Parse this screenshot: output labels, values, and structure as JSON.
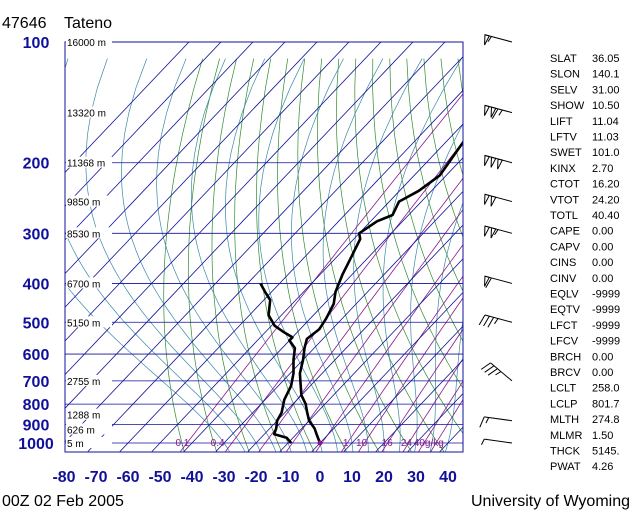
{
  "header": {
    "station_id": "47646",
    "station_name": "Tateno"
  },
  "footer": {
    "time": "00Z 02 Feb 2005",
    "source": "University of Wyoming"
  },
  "colors": {
    "grid": "#10109a",
    "dry_adiabat": "#2e8b2e",
    "moist_adiabat": "#3a8aa8",
    "mixing_ratio": "#8a1a8a",
    "profile": "#000000"
  },
  "chart_data": {
    "type": "line",
    "title": "47646 Tateno",
    "subtitle": "00Z 02 Feb 2005",
    "xlabel": "",
    "ylabel": "",
    "xlim": [
      -80,
      45
    ],
    "ylim": [
      1050,
      100
    ],
    "y_scale": "log",
    "grid": true,
    "x_ticks": [
      -80,
      -70,
      -60,
      -50,
      -40,
      -30,
      -20,
      -10,
      0,
      10,
      20,
      30,
      40
    ],
    "y_ticks": [
      100,
      200,
      300,
      400,
      500,
      600,
      700,
      800,
      900,
      1000
    ],
    "height_labels": [
      {
        "p": 100,
        "label": "16000 m"
      },
      {
        "p": 150,
        "label": "13320 m"
      },
      {
        "p": 200,
        "label": "11368 m"
      },
      {
        "p": 250,
        "label": "9850 m"
      },
      {
        "p": 300,
        "label": "8530 m"
      },
      {
        "p": 400,
        "label": "6700 m"
      },
      {
        "p": 500,
        "label": "5150 m"
      },
      {
        "p": 700,
        "label": "2755 m"
      },
      {
        "p": 850,
        "label": "1288 m"
      },
      {
        "p": 925,
        "label": "626 m"
      },
      {
        "p": 1000,
        "label": "5 m"
      }
    ],
    "mixing_ratio_labels": [
      {
        "w": "0.1",
        "t": -43
      },
      {
        "w": "0.4",
        "t": -32
      },
      {
        "w": "1",
        "t": 8
      },
      {
        "w": "10",
        "t": 13
      },
      {
        "w": "16",
        "t": 21
      },
      {
        "w": "24",
        "t": 27
      },
      {
        "w": "40g/kg",
        "t": 34
      }
    ],
    "series": [
      {
        "name": "Temperature",
        "points": [
          [
            0,
            1000
          ],
          [
            -3,
            960
          ],
          [
            -6,
            920
          ],
          [
            -10,
            880
          ],
          [
            -13,
            840
          ],
          [
            -16,
            800
          ],
          [
            -20,
            760
          ],
          [
            -23,
            720
          ],
          [
            -27,
            670
          ],
          [
            -30,
            620
          ],
          [
            -33,
            580
          ],
          [
            -35,
            550
          ],
          [
            -34,
            520
          ],
          [
            -35,
            490
          ],
          [
            -37,
            450
          ],
          [
            -40,
            420
          ],
          [
            -43,
            380
          ],
          [
            -45,
            350
          ],
          [
            -48,
            310
          ],
          [
            -50,
            300
          ],
          [
            -48,
            280
          ],
          [
            -45,
            270
          ],
          [
            -47,
            250
          ],
          [
            -44,
            235
          ],
          [
            -42,
            215
          ],
          [
            -43,
            200
          ],
          [
            -46,
            160
          ],
          [
            -46,
            140
          ],
          [
            -48,
            130
          ],
          [
            -50,
            115
          ],
          [
            -52,
            105
          ],
          [
            -53,
            100
          ]
        ]
      },
      {
        "name": "Dewpoint",
        "points": [
          [
            -9,
            1000
          ],
          [
            -12,
            970
          ],
          [
            -17,
            950
          ],
          [
            -18,
            920
          ],
          [
            -20,
            880
          ],
          [
            -21,
            840
          ],
          [
            -24,
            780
          ],
          [
            -26,
            720
          ],
          [
            -29,
            670
          ],
          [
            -33,
            620
          ],
          [
            -36,
            580
          ],
          [
            -40,
            555
          ],
          [
            -40,
            545
          ],
          [
            -44,
            530
          ],
          [
            -49,
            510
          ],
          [
            -54,
            480
          ],
          [
            -58,
            440
          ],
          [
            -62,
            420
          ],
          [
            -66,
            400
          ]
        ]
      }
    ],
    "wind_barbs": [
      {
        "p": 1000,
        "speed_kt": 5
      },
      {
        "p": 880,
        "speed_kt": 15
      },
      {
        "p": 700,
        "speed_kt": 35
      },
      {
        "p": 500,
        "speed_kt": 35
      },
      {
        "p": 400,
        "speed_kt": 60
      },
      {
        "p": 300,
        "speed_kt": 105
      },
      {
        "p": 250,
        "speed_kt": 100
      },
      {
        "p": 200,
        "speed_kt": 150
      },
      {
        "p": 150,
        "speed_kt": 115
      },
      {
        "p": 100,
        "speed_kt": 55
      }
    ]
  },
  "indices": [
    {
      "k": "SLAT",
      "v": "36.05"
    },
    {
      "k": "SLON",
      "v": "140.1"
    },
    {
      "k": "SELV",
      "v": "31.00"
    },
    {
      "k": "SHOW",
      "v": "10.50"
    },
    {
      "k": "LIFT",
      "v": "11.04"
    },
    {
      "k": "LFTV",
      "v": "11.03"
    },
    {
      "k": "SWET",
      "v": "101.0"
    },
    {
      "k": "KINX",
      "v": "2.70"
    },
    {
      "k": "CTOT",
      "v": "16.20"
    },
    {
      "k": "VTOT",
      "v": "24.20"
    },
    {
      "k": "TOTL",
      "v": "40.40"
    },
    {
      "k": "CAPE",
      "v": "0.00"
    },
    {
      "k": "CAPV",
      "v": "0.00"
    },
    {
      "k": "CINS",
      "v": "0.00"
    },
    {
      "k": "CINV",
      "v": "0.00"
    },
    {
      "k": "EQLV",
      "v": "-9999"
    },
    {
      "k": "EQTV",
      "v": "-9999"
    },
    {
      "k": "LFCT",
      "v": "-9999"
    },
    {
      "k": "LFCV",
      "v": "-9999"
    },
    {
      "k": "BRCH",
      "v": "0.00"
    },
    {
      "k": "BRCV",
      "v": "0.00"
    },
    {
      "k": "LCLT",
      "v": "258.0"
    },
    {
      "k": "LCLP",
      "v": "801.7"
    },
    {
      "k": "MLTH",
      "v": "274.8"
    },
    {
      "k": "MLMR",
      "v": "1.50"
    },
    {
      "k": "THCK",
      "v": "5145."
    },
    {
      "k": "PWAT",
      "v": "4.26"
    }
  ]
}
